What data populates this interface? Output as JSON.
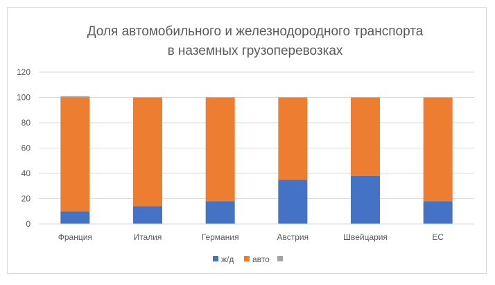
{
  "chart_data": {
    "type": "bar",
    "stacked": true,
    "title_lines": [
      "Доля автомобильного и железнодородного транспорта",
      "в наземных грузоперевозках"
    ],
    "xlabel": "",
    "ylabel": "",
    "categories": [
      "Франция",
      "Италия",
      "Германия",
      "Австрия",
      "Швейцария",
      "ЕС"
    ],
    "series": [
      {
        "name": "ж/д",
        "color": "#4472c4",
        "values": [
          10,
          14,
          18,
          35,
          38,
          18
        ]
      },
      {
        "name": "авто",
        "color": "#ed7d31",
        "values": [
          90,
          86,
          82,
          65,
          62,
          82
        ]
      },
      {
        "name": "",
        "color": "#a5a5a5",
        "values": [
          1,
          0,
          0,
          0,
          0,
          0
        ]
      }
    ],
    "ylim": [
      0,
      120
    ],
    "yticks": [
      0,
      20,
      40,
      60,
      80,
      100,
      120
    ],
    "grid": true,
    "legend_position": "bottom"
  }
}
